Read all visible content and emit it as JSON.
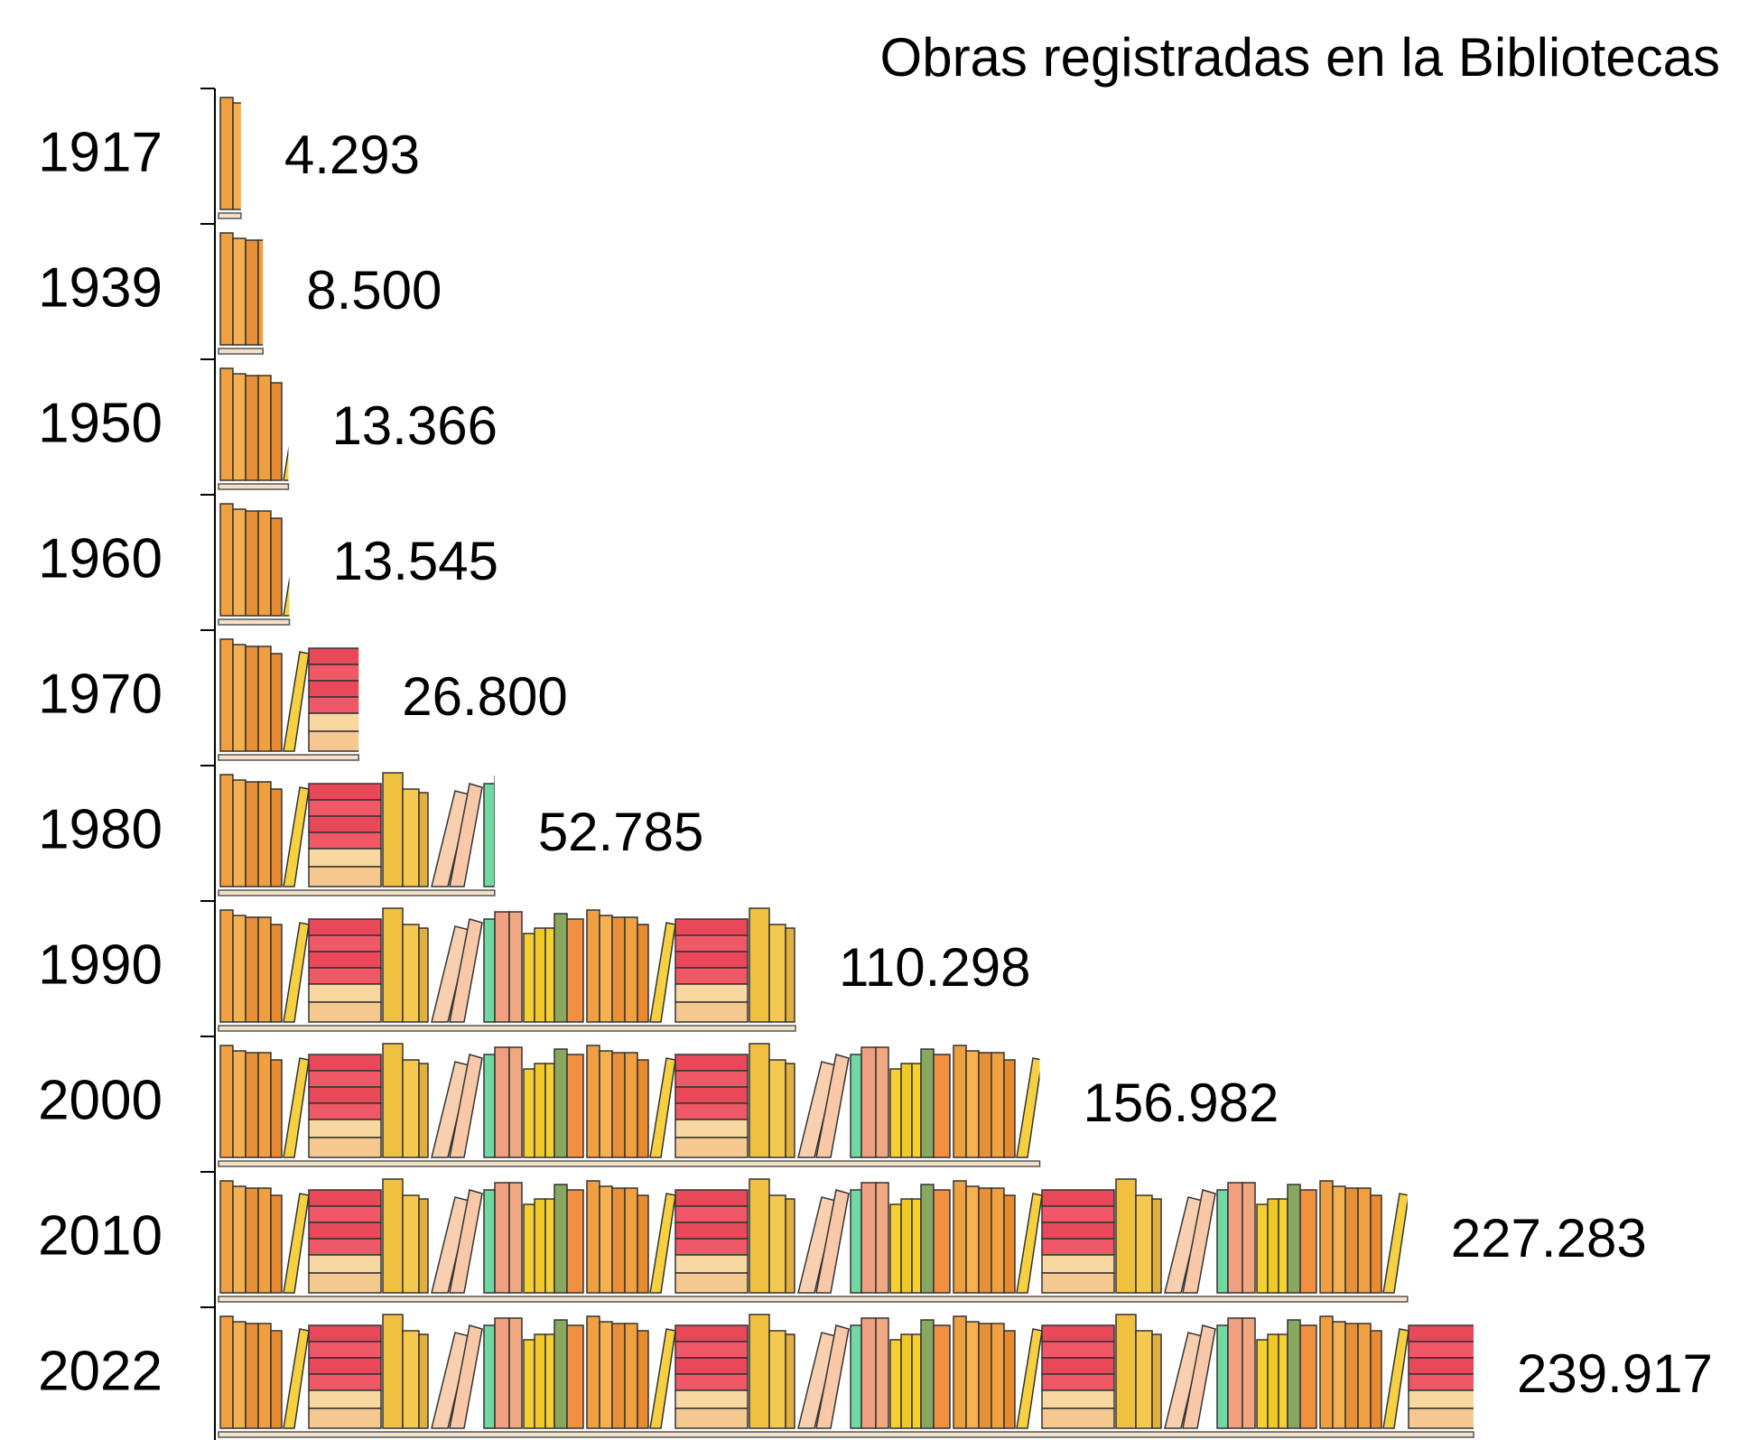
{
  "chart_data": {
    "type": "pictograph",
    "title": "Obras registradas  en la Bibliotecas",
    "categories": [
      "1917",
      "1939",
      "1950",
      "1960",
      "1970",
      "1980",
      "1990",
      "2000",
      "2010",
      "2022"
    ],
    "values": [
      4293,
      8500,
      13366,
      13545,
      26800,
      52785,
      110298,
      156982,
      227283,
      239917
    ],
    "value_labels": [
      "4.293",
      "8.500",
      "13.366",
      "13.545",
      "26.800",
      "52.785",
      "110.298",
      "156.982",
      "227.283",
      "239.917"
    ]
  }
}
